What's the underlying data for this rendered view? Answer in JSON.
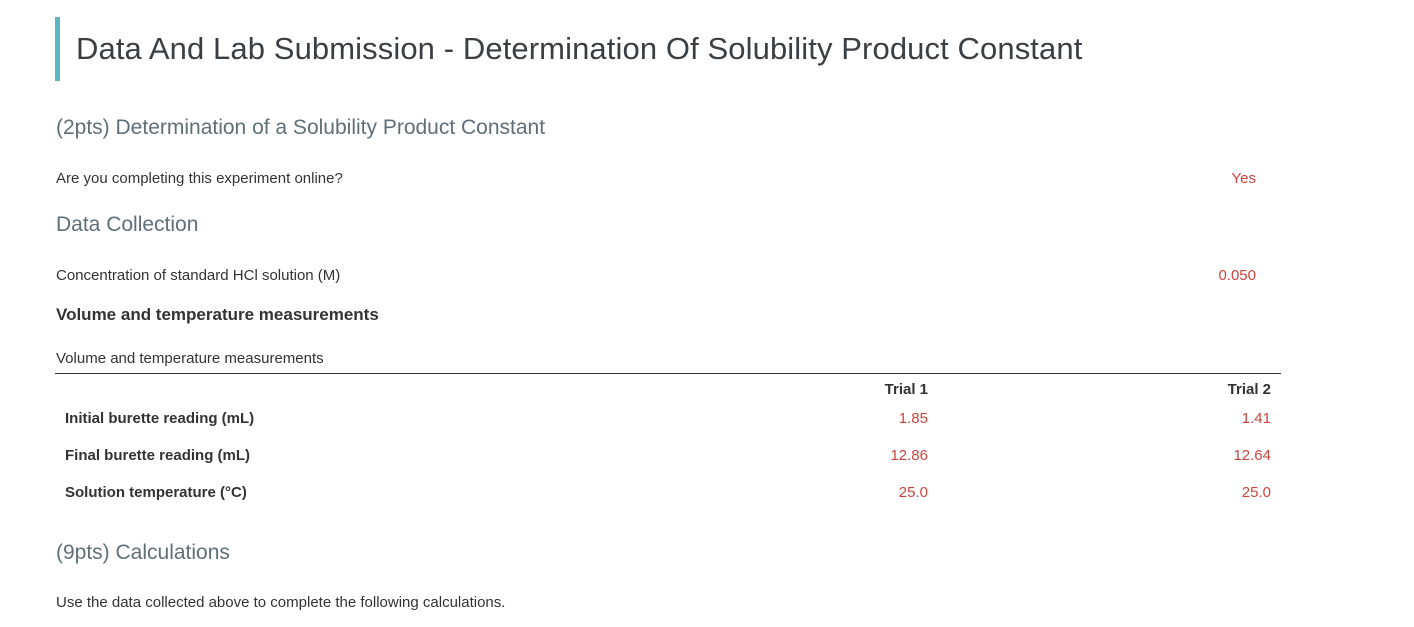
{
  "page": {
    "title": "Data And Lab Submission - Determination Of Solubility Product Constant"
  },
  "section_intro": {
    "heading": "(2pts) Determination of a Solubility Product Constant",
    "question": "Are you completing this experiment online?",
    "answer": "Yes"
  },
  "data_collection": {
    "heading": "Data Collection",
    "hcl_label": "Concentration of standard HCl solution (M)",
    "hcl_value": "0.050",
    "measurements_heading": "Volume and temperature measurements",
    "table": {
      "caption": "Volume and temperature measurements",
      "columns": [
        "",
        "Trial 1",
        "Trial 2"
      ],
      "rows": [
        {
          "label": "Initial burette reading (mL)",
          "trial1": "1.85",
          "trial2": "1.41"
        },
        {
          "label": "Final burette reading (mL)",
          "trial1": "12.86",
          "trial2": "12.64"
        },
        {
          "label": "Solution temperature (°C)",
          "trial1": "25.0",
          "trial2": "25.0"
        }
      ]
    }
  },
  "calculations": {
    "heading": "(9pts) Calculations",
    "intro": "Use the data collected above to complete the following calculations."
  },
  "colors": {
    "accent_bar": "#5bb8c0",
    "answer_text": "#c9453d",
    "section_heading": "#5f6f78"
  }
}
